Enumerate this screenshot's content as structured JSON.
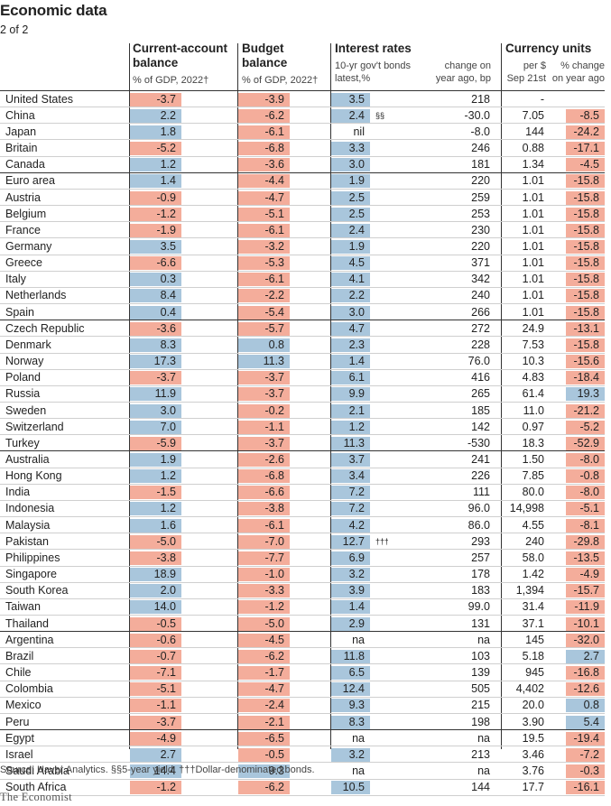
{
  "title": "Economic data",
  "subtitle": "2 of 2",
  "headers": {
    "ca_title1": "Current-account",
    "ca_title2": "balance",
    "ca_sub": "% of GDP, 2022†",
    "budget_title1": "Budget",
    "budget_title2": "balance",
    "budget_sub": "% of GDP, 2022†",
    "ir_title": "Interest rates",
    "ir_sub1a": "10-yr gov't bonds",
    "ir_sub1b": "latest,%",
    "ir_sub2a": "change on",
    "ir_sub2b": "year ago, bp",
    "cu_title": "Currency units",
    "cu_sub1a": "per $",
    "cu_sub1b": "Sep 21st",
    "cu_sub2a": "% change",
    "cu_sub2b": "on year ago"
  },
  "rows": [
    {
      "country": "United States",
      "ca": "-3.7",
      "budget": "-3.9",
      "ir": "3.5",
      "fn": "",
      "irchg": "218",
      "cur": "-",
      "curchg": ""
    },
    {
      "country": "China",
      "ca": "2.2",
      "budget": "-6.2",
      "ir": "2.4",
      "fn": "§§",
      "irchg": "-30.0",
      "cur": "7.05",
      "curchg": "-8.5"
    },
    {
      "country": "Japan",
      "ca": "1.8",
      "budget": "-6.1",
      "ir": "nil",
      "fn": "",
      "irchg": "-8.0",
      "cur": "144",
      "curchg": "-24.2"
    },
    {
      "country": "Britain",
      "ca": "-5.2",
      "budget": "-6.8",
      "ir": "3.3",
      "fn": "",
      "irchg": "246",
      "cur": "0.88",
      "curchg": "-17.1"
    },
    {
      "country": "Canada",
      "ca": "1.2",
      "budget": "-3.6",
      "ir": "3.0",
      "fn": "",
      "irchg": "181",
      "cur": "1.34",
      "curchg": "-4.5"
    },
    {
      "country": "Euro area",
      "ca": "1.4",
      "budget": "-4.4",
      "ir": "1.9",
      "fn": "",
      "irchg": "220",
      "cur": "1.01",
      "curchg": "-15.8"
    },
    {
      "country": "Austria",
      "ca": "-0.9",
      "budget": "-4.7",
      "ir": "2.5",
      "fn": "",
      "irchg": "259",
      "cur": "1.01",
      "curchg": "-15.8"
    },
    {
      "country": "Belgium",
      "ca": "-1.2",
      "budget": "-5.1",
      "ir": "2.5",
      "fn": "",
      "irchg": "253",
      "cur": "1.01",
      "curchg": "-15.8"
    },
    {
      "country": "France",
      "ca": "-1.9",
      "budget": "-6.1",
      "ir": "2.4",
      "fn": "",
      "irchg": "230",
      "cur": "1.01",
      "curchg": "-15.8"
    },
    {
      "country": "Germany",
      "ca": "3.5",
      "budget": "-3.2",
      "ir": "1.9",
      "fn": "",
      "irchg": "220",
      "cur": "1.01",
      "curchg": "-15.8"
    },
    {
      "country": "Greece",
      "ca": "-6.6",
      "budget": "-5.3",
      "ir": "4.5",
      "fn": "",
      "irchg": "371",
      "cur": "1.01",
      "curchg": "-15.8"
    },
    {
      "country": "Italy",
      "ca": "0.3",
      "budget": "-6.1",
      "ir": "4.1",
      "fn": "",
      "irchg": "342",
      "cur": "1.01",
      "curchg": "-15.8"
    },
    {
      "country": "Netherlands",
      "ca": "8.4",
      "budget": "-2.2",
      "ir": "2.2",
      "fn": "",
      "irchg": "240",
      "cur": "1.01",
      "curchg": "-15.8"
    },
    {
      "country": "Spain",
      "ca": "0.4",
      "budget": "-5.4",
      "ir": "3.0",
      "fn": "",
      "irchg": "266",
      "cur": "1.01",
      "curchg": "-15.8"
    },
    {
      "country": "Czech Republic",
      "ca": "-3.6",
      "budget": "-5.7",
      "ir": "4.7",
      "fn": "",
      "irchg": "272",
      "cur": "24.9",
      "curchg": "-13.1"
    },
    {
      "country": "Denmark",
      "ca": "8.3",
      "budget": "0.8",
      "ir": "2.3",
      "fn": "",
      "irchg": "228",
      "cur": "7.53",
      "curchg": "-15.8"
    },
    {
      "country": "Norway",
      "ca": "17.3",
      "budget": "11.3",
      "ir": "1.4",
      "fn": "",
      "irchg": "76.0",
      "cur": "10.3",
      "curchg": "-15.6"
    },
    {
      "country": "Poland",
      "ca": "-3.7",
      "budget": "-3.7",
      "ir": "6.1",
      "fn": "",
      "irchg": "416",
      "cur": "4.83",
      "curchg": "-18.4"
    },
    {
      "country": "Russia",
      "ca": "11.9",
      "budget": "-3.7",
      "ir": "9.9",
      "fn": "",
      "irchg": "265",
      "cur": "61.4",
      "curchg": "19.3"
    },
    {
      "country": "Sweden",
      "ca": "3.0",
      "budget": "-0.2",
      "ir": "2.1",
      "fn": "",
      "irchg": "185",
      "cur": "11.0",
      "curchg": "-21.2"
    },
    {
      "country": "Switzerland",
      "ca": "7.0",
      "budget": "-1.1",
      "ir": "1.2",
      "fn": "",
      "irchg": "142",
      "cur": "0.97",
      "curchg": "-5.2"
    },
    {
      "country": "Turkey",
      "ca": "-5.9",
      "budget": "-3.7",
      "ir": "11.3",
      "fn": "",
      "irchg": "-530",
      "cur": "18.3",
      "curchg": "-52.9"
    },
    {
      "country": "Australia",
      "ca": "1.9",
      "budget": "-2.6",
      "ir": "3.7",
      "fn": "",
      "irchg": "241",
      "cur": "1.50",
      "curchg": "-8.0"
    },
    {
      "country": "Hong Kong",
      "ca": "1.2",
      "budget": "-6.8",
      "ir": "3.4",
      "fn": "",
      "irchg": "226",
      "cur": "7.85",
      "curchg": "-0.8"
    },
    {
      "country": "India",
      "ca": "-1.5",
      "budget": "-6.6",
      "ir": "7.2",
      "fn": "",
      "irchg": "111",
      "cur": "80.0",
      "curchg": "-8.0"
    },
    {
      "country": "Indonesia",
      "ca": "1.2",
      "budget": "-3.8",
      "ir": "7.2",
      "fn": "",
      "irchg": "96.0",
      "cur": "14,998",
      "curchg": "-5.1"
    },
    {
      "country": "Malaysia",
      "ca": "1.6",
      "budget": "-6.1",
      "ir": "4.2",
      "fn": "",
      "irchg": "86.0",
      "cur": "4.55",
      "curchg": "-8.1"
    },
    {
      "country": "Pakistan",
      "ca": "-5.0",
      "budget": "-7.0",
      "ir": "12.7",
      "fn": "†††",
      "irchg": "293",
      "cur": "240",
      "curchg": "-29.8"
    },
    {
      "country": "Philippines",
      "ca": "-3.8",
      "budget": "-7.7",
      "ir": "6.9",
      "fn": "",
      "irchg": "257",
      "cur": "58.0",
      "curchg": "-13.5"
    },
    {
      "country": "Singapore",
      "ca": "18.9",
      "budget": "-1.0",
      "ir": "3.2",
      "fn": "",
      "irchg": "178",
      "cur": "1.42",
      "curchg": "-4.9"
    },
    {
      "country": "South Korea",
      "ca": "2.0",
      "budget": "-3.3",
      "ir": "3.9",
      "fn": "",
      "irchg": "183",
      "cur": "1,394",
      "curchg": "-15.7"
    },
    {
      "country": "Taiwan",
      "ca": "14.0",
      "budget": "-1.2",
      "ir": "1.4",
      "fn": "",
      "irchg": "99.0",
      "cur": "31.4",
      "curchg": "-11.9"
    },
    {
      "country": "Thailand",
      "ca": "-0.5",
      "budget": "-5.0",
      "ir": "2.9",
      "fn": "",
      "irchg": "131",
      "cur": "37.1",
      "curchg": "-10.1"
    },
    {
      "country": "Argentina",
      "ca": "-0.6",
      "budget": "-4.5",
      "ir": "na",
      "fn": "",
      "irchg": "na",
      "cur": "145",
      "curchg": "-32.0"
    },
    {
      "country": "Brazil",
      "ca": "-0.7",
      "budget": "-6.2",
      "ir": "11.8",
      "fn": "",
      "irchg": "103",
      "cur": "5.18",
      "curchg": "2.7"
    },
    {
      "country": "Chile",
      "ca": "-7.1",
      "budget": "-1.7",
      "ir": "6.5",
      "fn": "",
      "irchg": "139",
      "cur": "945",
      "curchg": "-16.8"
    },
    {
      "country": "Colombia",
      "ca": "-5.1",
      "budget": "-4.7",
      "ir": "12.4",
      "fn": "",
      "irchg": "505",
      "cur": "4,402",
      "curchg": "-12.6"
    },
    {
      "country": "Mexico",
      "ca": "-1.1",
      "budget": "-2.4",
      "ir": "9.3",
      "fn": "",
      "irchg": "215",
      "cur": "20.0",
      "curchg": "0.8"
    },
    {
      "country": "Peru",
      "ca": "-3.7",
      "budget": "-2.1",
      "ir": "8.3",
      "fn": "",
      "irchg": "198",
      "cur": "3.90",
      "curchg": "5.4"
    },
    {
      "country": "Egypt",
      "ca": "-4.9",
      "budget": "-6.5",
      "ir": "na",
      "fn": "",
      "irchg": "na",
      "cur": "19.5",
      "curchg": "-19.4"
    },
    {
      "country": "Israel",
      "ca": "2.7",
      "budget": "-0.5",
      "ir": "3.2",
      "fn": "",
      "irchg": "213",
      "cur": "3.46",
      "curchg": "-7.2"
    },
    {
      "country": "Saudi Arabia",
      "ca": "14.4",
      "budget": "9.3",
      "ir": "na",
      "fn": "",
      "irchg": "na",
      "cur": "3.76",
      "curchg": "-0.3"
    },
    {
      "country": "South Africa",
      "ca": "-1.2",
      "budget": "-6.2",
      "ir": "10.5",
      "fn": "",
      "irchg": "144",
      "cur": "17.7",
      "curchg": "-16.1"
    }
  ],
  "source": "Source: Haver Analytics. §§5-year yield. †††Dollar-denominated bonds.",
  "brand": "The Economist",
  "colors": {
    "positive": "#a9c6dc",
    "negative": "#f4ad9b"
  }
}
